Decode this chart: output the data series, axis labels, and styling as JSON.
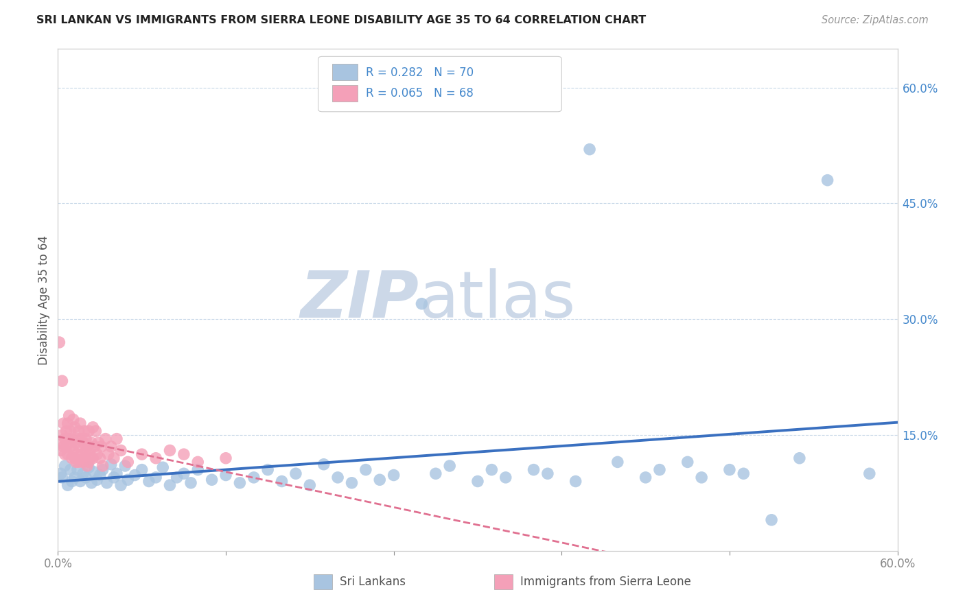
{
  "title": "SRI LANKAN VS IMMIGRANTS FROM SIERRA LEONE DISABILITY AGE 35 TO 64 CORRELATION CHART",
  "source": "Source: ZipAtlas.com",
  "ylabel": "Disability Age 35 to 64",
  "right_yticklabels": [
    "15.0%",
    "30.0%",
    "45.0%",
    "60.0%"
  ],
  "right_ytick_vals": [
    0.15,
    0.3,
    0.45,
    0.6
  ],
  "legend_r1": "R = 0.282",
  "legend_n1": "N = 70",
  "legend_r2": "R = 0.065",
  "legend_n2": "N = 68",
  "legend_label1": "Sri Lankans",
  "legend_label2": "Immigrants from Sierra Leone",
  "color_blue": "#a8c4e0",
  "color_pink": "#f4a0b8",
  "color_blue_line": "#3a70c0",
  "color_pink_line": "#e07090",
  "watermark_color": "#ccd8e8",
  "xlim": [
    0.0,
    0.6
  ],
  "ylim": [
    0.0,
    0.65
  ],
  "grid_color": "#c8d8e8",
  "title_color": "#222222",
  "source_color": "#999999",
  "label_color": "#555555",
  "tick_label_color": "#4488cc"
}
